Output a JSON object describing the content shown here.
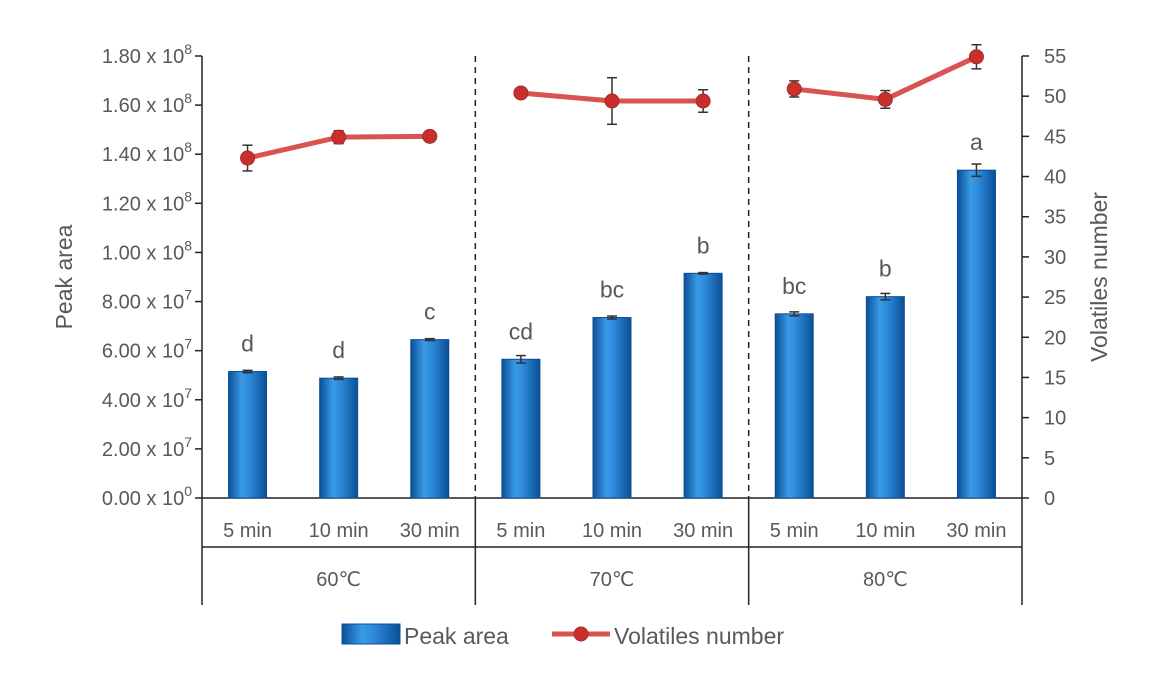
{
  "chart_data": {
    "type": "bar+line",
    "y_left": {
      "label": "Peak area",
      "min": 0,
      "max": 180000000,
      "ticks": [
        {
          "value": 0,
          "mantissa": "0.00",
          "exp": "0"
        },
        {
          "value": 20000000,
          "mantissa": "2.00",
          "exp": "7"
        },
        {
          "value": 40000000,
          "mantissa": "4.00",
          "exp": "7"
        },
        {
          "value": 60000000,
          "mantissa": "6.00",
          "exp": "7"
        },
        {
          "value": 80000000,
          "mantissa": "8.00",
          "exp": "7"
        },
        {
          "value": 100000000,
          "mantissa": "1.00",
          "exp": "8"
        },
        {
          "value": 120000000,
          "mantissa": "1.20",
          "exp": "8"
        },
        {
          "value": 140000000,
          "mantissa": "1.40",
          "exp": "8"
        },
        {
          "value": 160000000,
          "mantissa": "1.60",
          "exp": "8"
        },
        {
          "value": 180000000,
          "mantissa": "1.80",
          "exp": "8"
        }
      ],
      "times_symbol": " x 10"
    },
    "y_right": {
      "label": "Volatiles number",
      "min": 0,
      "max": 55,
      "ticks": [
        "0",
        "5",
        "10",
        "15",
        "20",
        "25",
        "30",
        "35",
        "40",
        "45",
        "50",
        "55"
      ]
    },
    "groups": [
      {
        "label": "60℃",
        "categories": [
          "5 min",
          "10 min",
          "30 min"
        ],
        "peak_area": [
          51500000,
          48800000,
          64500000
        ],
        "peak_area_err": [
          500000,
          500000,
          400000
        ],
        "letters": [
          "d",
          "d",
          "c"
        ],
        "volatiles": [
          42.3,
          44.9,
          45.0
        ],
        "volatiles_err": [
          1.6,
          0.8,
          0.3
        ]
      },
      {
        "label": "70℃",
        "categories": [
          "5 min",
          "10 min",
          "30 min"
        ],
        "peak_area": [
          56500000,
          73500000,
          91500000
        ],
        "peak_area_err": [
          1500000,
          600000,
          300000
        ],
        "letters": [
          "cd",
          "bc",
          "b"
        ],
        "volatiles": [
          50.4,
          49.4,
          49.4
        ],
        "volatiles_err": [
          0.4,
          2.9,
          1.4
        ]
      },
      {
        "label": "80℃",
        "categories": [
          "5 min",
          "10 min",
          "30 min"
        ],
        "peak_area": [
          75000000,
          82000000,
          133500000
        ],
        "peak_area_err": [
          800000,
          1300000,
          2500000
        ],
        "letters": [
          "bc",
          "b",
          "a"
        ],
        "volatiles": [
          50.9,
          49.6,
          54.9
        ],
        "volatiles_err": [
          1.0,
          1.1,
          1.5
        ]
      }
    ],
    "series": [
      {
        "name": "Peak area",
        "kind": "bar",
        "color": "#1f78c8"
      },
      {
        "name": "Volatiles number",
        "kind": "line",
        "color": "#d9534f"
      }
    ],
    "legend_position": "bottom",
    "group_separators": "dashed"
  }
}
